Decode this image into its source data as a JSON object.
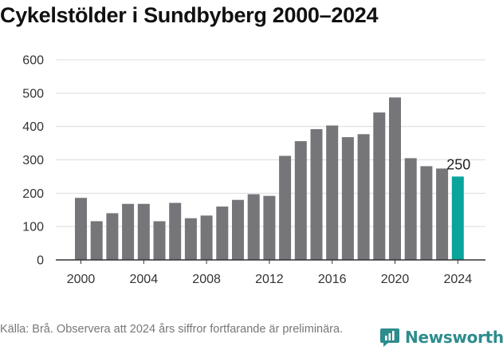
{
  "title": "Cykelstölder i Sundbyberg 2000–2024",
  "source_text": "Källa: Brå. Observera att 2024 års siffror fortfarande är preliminära.",
  "brand": {
    "name": "Newsworthy",
    "icon": "newsworthy-chat-bars-icon"
  },
  "colors": {
    "bar": "#75757a",
    "highlight": "#0aa49c",
    "grid": "#dcdcdc",
    "brand": "#2e8c8c"
  },
  "chart_data": {
    "type": "bar",
    "title": "Cykelstölder i Sundbyberg 2000–2024",
    "xlabel": "",
    "ylabel": "",
    "categories": [
      2000,
      2001,
      2002,
      2003,
      2004,
      2005,
      2006,
      2007,
      2008,
      2009,
      2010,
      2011,
      2012,
      2013,
      2014,
      2015,
      2016,
      2017,
      2018,
      2019,
      2020,
      2021,
      2022,
      2023,
      2024
    ],
    "values": [
      186,
      116,
      140,
      168,
      168,
      116,
      171,
      125,
      133,
      160,
      180,
      197,
      192,
      312,
      356,
      392,
      403,
      368,
      377,
      442,
      487,
      305,
      281,
      274,
      250
    ],
    "ylim": [
      0,
      600
    ],
    "yticks": [
      0,
      100,
      200,
      300,
      400,
      500,
      600
    ],
    "xticks": [
      2000,
      2004,
      2008,
      2012,
      2016,
      2020,
      2024
    ],
    "highlight_category": 2024,
    "annotation": "250",
    "grid": true
  }
}
